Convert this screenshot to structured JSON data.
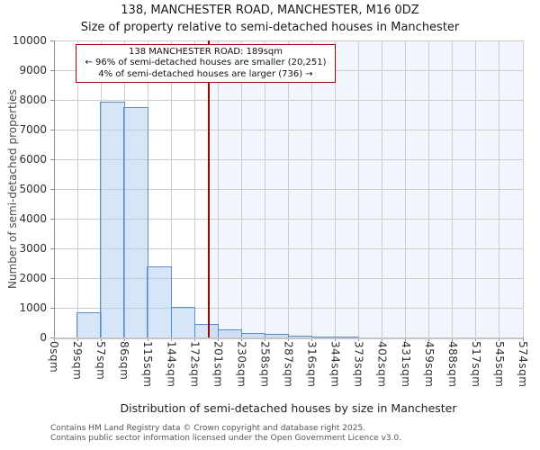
{
  "figure": {
    "footer_lines": [
      "Contains HM Land Registry data © Crown copyright and database right 2025.",
      "Contains public sector information licensed under the Open Government Licence v3.0."
    ]
  },
  "chart_data": {
    "type": "bar",
    "title": "138, MANCHESTER ROAD, MANCHESTER, M16 0DZ",
    "subtitle": "Size of property relative to semi-detached houses in Manchester",
    "xlabel": "Distribution of semi-detached houses by size in Manchester",
    "ylabel": "Number of semi-detached properties",
    "x_tick_labels": [
      "0sqm",
      "29sqm",
      "57sqm",
      "86sqm",
      "115sqm",
      "144sqm",
      "172sqm",
      "201sqm",
      "230sqm",
      "258sqm",
      "287sqm",
      "316sqm",
      "344sqm",
      "373sqm",
      "402sqm",
      "431sqm",
      "459sqm",
      "488sqm",
      "517sqm",
      "545sqm",
      "574sqm"
    ],
    "x_max_sqm": 574,
    "ylim": [
      0,
      10000
    ],
    "y_tick_step": 1000,
    "grid": true,
    "legend": "none",
    "first_bin_tick_index": 1,
    "bins": [
      {
        "range": "29-57sqm",
        "value": 850
      },
      {
        "range": "57-86sqm",
        "value": 7950
      },
      {
        "range": "86-115sqm",
        "value": 7760
      },
      {
        "range": "115-144sqm",
        "value": 2390
      },
      {
        "range": "144-172sqm",
        "value": 1020
      },
      {
        "range": "172-201sqm",
        "value": 470
      },
      {
        "range": "201-230sqm",
        "value": 275
      },
      {
        "range": "230-258sqm",
        "value": 160
      },
      {
        "range": "258-287sqm",
        "value": 115
      },
      {
        "range": "287-316sqm",
        "value": 70
      },
      {
        "range": "316-344sqm",
        "value": 45
      },
      {
        "range": "344-373sqm",
        "value": 35
      }
    ],
    "marker": {
      "value_sqm": 189,
      "color": "#a80000"
    },
    "shaded_region": {
      "from_sqm": 189,
      "to_sqm": 574,
      "color": "#f1f5fc"
    },
    "annotation": {
      "line1": "138 MANCHESTER ROAD: 189sqm",
      "line2": "← 96% of semi-detached houses are smaller (20,251)",
      "line3": "4% of semi-detached houses are larger (736) →"
    },
    "colors": {
      "bar_fill": "rgba(174,203,239,0.5)",
      "bar_edge": "#5b8dc9",
      "grid": "#cdcdcd",
      "marker_line": "#a80000",
      "annotation_border": "#a80000"
    }
  }
}
